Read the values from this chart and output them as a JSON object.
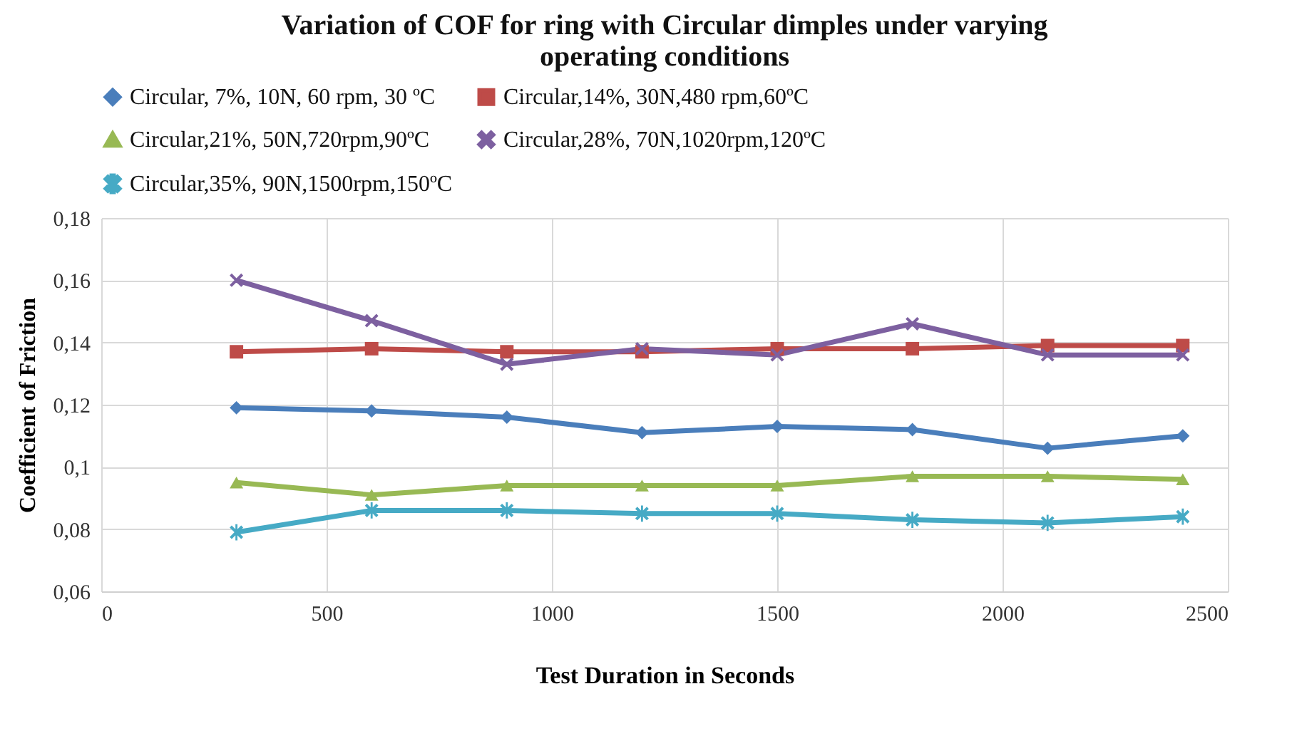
{
  "chart_data": {
    "type": "line",
    "title": "Variation of COF for ring with Circular dimples under varying operating conditions",
    "xlabel": "Test Duration in Seconds",
    "ylabel": "Coefficient of Friction",
    "x": [
      300,
      600,
      900,
      1200,
      1500,
      1800,
      2100,
      2400
    ],
    "series": [
      {
        "name": "Circular, 7%, 10N, 60 rpm, 30 ºC",
        "color": "#4a7ebb",
        "marker": "diamond",
        "values": [
          0.119,
          0.118,
          0.116,
          0.111,
          0.113,
          0.112,
          0.106,
          0.11
        ]
      },
      {
        "name": "Circular,14%,  30N,480 rpm,60ºC",
        "color": "#be4b48",
        "marker": "square",
        "values": [
          0.137,
          0.138,
          0.137,
          0.137,
          0.138,
          0.138,
          0.139,
          0.139
        ]
      },
      {
        "name": "Circular,21%, 50N,720rpm,90ºC",
        "color": "#98b954",
        "marker": "triangle",
        "values": [
          0.095,
          0.091,
          0.094,
          0.094,
          0.094,
          0.097,
          0.097,
          0.096
        ]
      },
      {
        "name": "Circular,28%, 70N,1020rpm,120ºC",
        "color": "#7d60a0",
        "marker": "cross",
        "values": [
          0.16,
          0.147,
          0.133,
          0.138,
          0.136,
          0.146,
          0.136,
          0.136
        ]
      },
      {
        "name": "Circular,35%, 90N,1500rpm,150ºC",
        "color": "#46aac5",
        "marker": "star",
        "values": [
          0.079,
          0.086,
          0.086,
          0.085,
          0.085,
          0.083,
          0.082,
          0.084
        ]
      }
    ],
    "xlim": [
      0,
      2500
    ],
    "xticks": [
      0,
      500,
      1000,
      1500,
      2000,
      2500
    ],
    "ylim": [
      0.06,
      0.18
    ],
    "yticks": [
      {
        "value": 0.06,
        "label": "0,06"
      },
      {
        "value": 0.08,
        "label": "0,08"
      },
      {
        "value": 0.1,
        "label": "0,1"
      },
      {
        "value": 0.12,
        "label": "0,12"
      },
      {
        "value": 0.14,
        "label": "0,14"
      },
      {
        "value": 0.16,
        "label": "0,16"
      },
      {
        "value": 0.18,
        "label": "0,18"
      }
    ],
    "grid": true,
    "legend": "top",
    "line_style": "solid"
  }
}
